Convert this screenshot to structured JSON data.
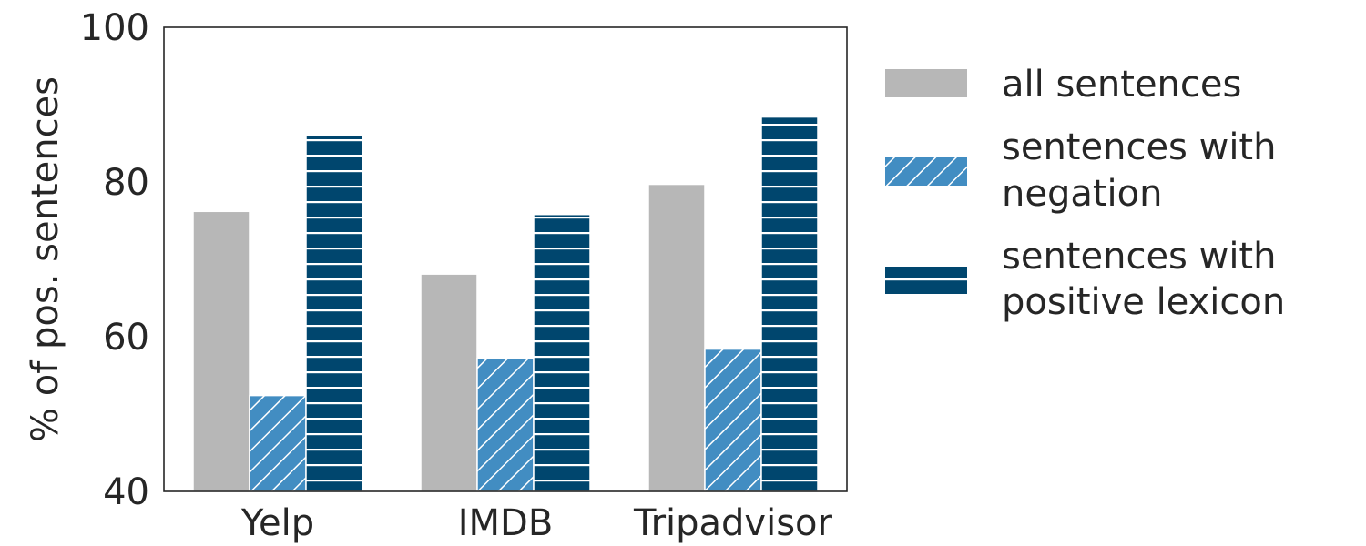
{
  "chart_data": {
    "type": "bar",
    "title": "",
    "xlabel": "",
    "ylabel": "% of pos. sentences",
    "ylim": [
      40,
      100
    ],
    "yticks": [
      40,
      60,
      80,
      100
    ],
    "categories": [
      "Yelp",
      "IMDB",
      "Tripadvisor"
    ],
    "grid": false,
    "legend_position": "right, outside plot",
    "series": [
      {
        "name": "all sentences",
        "values": [
          76.2,
          68.1,
          79.7
        ],
        "color": "#b7b7b7",
        "hatch": "none"
      },
      {
        "name": "sentences with negation",
        "values": [
          52.4,
          57.2,
          58.4
        ],
        "color": "#428dc2",
        "hatch": "diagonal"
      },
      {
        "name": "sentences with positive lexicon",
        "values": [
          86.0,
          75.8,
          88.4
        ],
        "color": "#00466e",
        "hatch": "horizontal"
      }
    ]
  }
}
